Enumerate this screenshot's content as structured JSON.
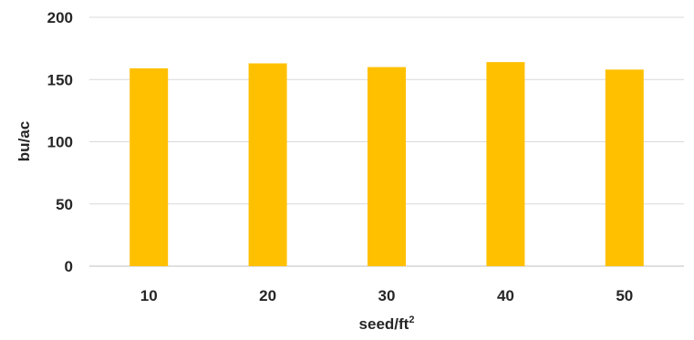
{
  "chart_data": {
    "type": "bar",
    "categories": [
      "10",
      "20",
      "30",
      "40",
      "50"
    ],
    "values": [
      159,
      163,
      160,
      164,
      158
    ],
    "xlabel": "seed/ft",
    "xlabel_superscript": "2",
    "ylabel": "bu/ac",
    "ylim": [
      0,
      200
    ],
    "yticks": [
      "0",
      "50",
      "100",
      "150",
      "200"
    ],
    "grid": true,
    "legend": "none",
    "bar_color": "#FFC000",
    "grid_color": "#D9D9D9",
    "axis_color": "#BFBFBF"
  }
}
